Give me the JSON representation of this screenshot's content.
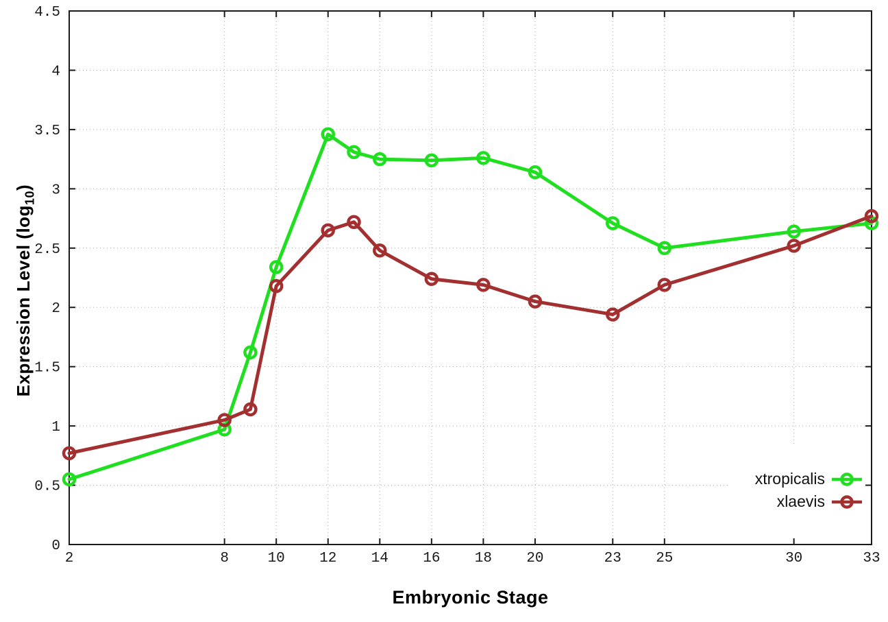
{
  "chart_data": {
    "type": "line",
    "title": "",
    "xlabel": "Embryonic Stage",
    "ylabel": "Expression Level (log10)",
    "ylabel_main": "Expression Level (log",
    "ylabel_sub": "10",
    "ylabel_suffix": ")",
    "x": [
      2,
      8,
      9,
      10,
      12,
      13,
      14,
      16,
      18,
      20,
      23,
      25,
      30,
      33
    ],
    "x_tick_labels": [
      2,
      8,
      10,
      12,
      14,
      16,
      18,
      20,
      23,
      25,
      30,
      33
    ],
    "y_tick_labels": [
      0,
      0.5,
      1,
      1.5,
      2,
      2.5,
      3,
      3.5,
      4,
      4.5
    ],
    "xlim": [
      2,
      33
    ],
    "ylim": [
      0,
      4.5
    ],
    "grid": true,
    "grid_style": "dotted",
    "legend_position": "bottom-right-inside",
    "marker": "open-circle",
    "series": [
      {
        "name": "xtropicalis",
        "color": "#20df20",
        "values": [
          0.55,
          0.97,
          1.62,
          2.34,
          3.46,
          3.31,
          3.25,
          3.24,
          3.26,
          3.14,
          2.71,
          2.5,
          2.64,
          2.71
        ]
      },
      {
        "name": "xlaevis",
        "color": "#a33030",
        "values": [
          0.77,
          1.05,
          1.14,
          2.18,
          2.65,
          2.72,
          2.48,
          2.24,
          2.19,
          2.05,
          1.94,
          2.19,
          2.52,
          2.77
        ]
      }
    ]
  }
}
